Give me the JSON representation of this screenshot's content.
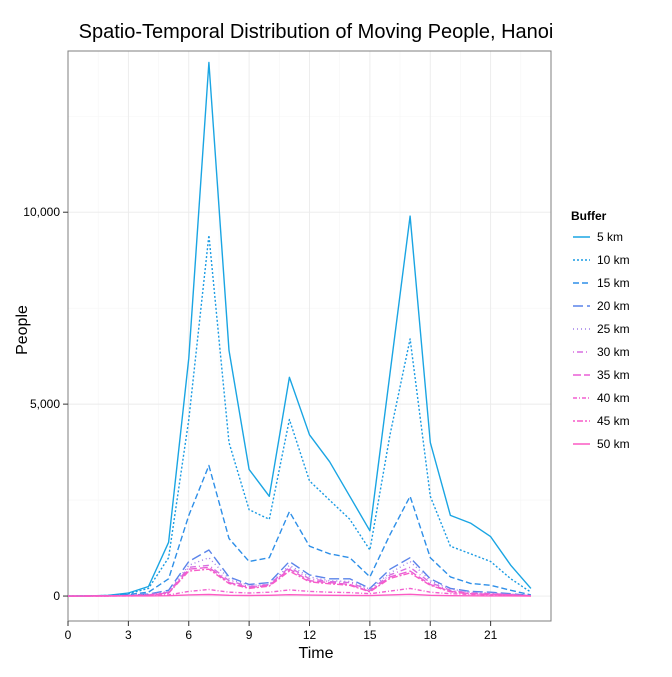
{
  "chart_data": {
    "type": "line",
    "title": "Spatio-Temporal Distribution of Moving People, Hanoi",
    "xlabel": "Time",
    "ylabel": "People",
    "xlim": [
      0,
      24
    ],
    "ylim": [
      -650,
      14200
    ],
    "x_ticks": [
      0,
      3,
      6,
      9,
      12,
      15,
      18,
      21
    ],
    "x_tick_labels": [
      "0",
      "3",
      "6",
      "9",
      "12",
      "15",
      "18",
      "21"
    ],
    "y_ticks": [
      0,
      5000,
      10000
    ],
    "y_tick_labels": [
      "0",
      "5,000",
      "10,000"
    ],
    "grid": true,
    "legend_title": "Buffer",
    "legend_position": "right",
    "x": [
      0,
      1,
      2,
      3,
      4,
      5,
      6,
      7,
      8,
      9,
      10,
      11,
      12,
      13,
      14,
      15,
      16,
      17,
      18,
      19,
      20,
      21,
      22,
      23
    ],
    "series": [
      {
        "name": "5 km",
        "color": "#1aa5e3",
        "dash": "",
        "values": [
          0,
          5,
          20,
          80,
          250,
          1400,
          6200,
          13900,
          6400,
          3300,
          2600,
          5700,
          4200,
          3500,
          2600,
          1700,
          5800,
          9900,
          4000,
          2100,
          1900,
          1550,
          800,
          200
        ]
      },
      {
        "name": "10 km",
        "color": "#1a9be3",
        "dash": "2,2",
        "values": [
          0,
          4,
          15,
          60,
          200,
          1000,
          4600,
          9400,
          4000,
          2250,
          2000,
          4600,
          3000,
          2500,
          2000,
          1200,
          4200,
          6700,
          2600,
          1300,
          1100,
          900,
          450,
          100
        ]
      },
      {
        "name": "15 km",
        "color": "#2e8fe8",
        "dash": "6,3",
        "values": [
          0,
          3,
          10,
          40,
          100,
          450,
          2100,
          3400,
          1500,
          900,
          1000,
          2200,
          1300,
          1100,
          1000,
          500,
          1600,
          2600,
          1000,
          500,
          330,
          280,
          150,
          30
        ]
      },
      {
        "name": "20 km",
        "color": "#5a84ea",
        "dash": "10,4",
        "values": [
          0,
          2,
          6,
          20,
          50,
          150,
          900,
          1200,
          500,
          300,
          350,
          900,
          550,
          450,
          450,
          200,
          700,
          1000,
          450,
          200,
          120,
          100,
          60,
          15
        ]
      },
      {
        "name": "25 km",
        "color": "#a07ee8",
        "dash": "1,3",
        "values": [
          0,
          2,
          5,
          15,
          40,
          120,
          800,
          1000,
          450,
          280,
          300,
          800,
          500,
          400,
          380,
          180,
          600,
          900,
          400,
          180,
          100,
          80,
          50,
          10
        ]
      },
      {
        "name": "30 km",
        "color": "#d76ee0",
        "dash": "1,3,6,3",
        "values": [
          0,
          1,
          4,
          12,
          30,
          100,
          750,
          800,
          400,
          250,
          300,
          750,
          450,
          380,
          350,
          150,
          550,
          750,
          350,
          150,
          80,
          60,
          40,
          8
        ]
      },
      {
        "name": "35 km",
        "color": "#ea5ed6",
        "dash": "8,3",
        "values": [
          0,
          1,
          3,
          10,
          25,
          80,
          700,
          750,
          350,
          220,
          280,
          700,
          400,
          350,
          300,
          120,
          500,
          650,
          300,
          120,
          60,
          50,
          30,
          5
        ]
      },
      {
        "name": "40 km",
        "color": "#f25fd0",
        "dash": "4,2,1,2",
        "values": [
          0,
          1,
          2,
          5,
          10,
          30,
          120,
          170,
          100,
          80,
          100,
          160,
          120,
          100,
          90,
          60,
          130,
          200,
          100,
          60,
          40,
          30,
          20,
          3
        ]
      },
      {
        "name": "45 km",
        "color": "#f75cc8",
        "dash": "2,2,6,2",
        "values": [
          0,
          1,
          3,
          10,
          25,
          75,
          650,
          700,
          330,
          200,
          260,
          650,
          370,
          320,
          280,
          110,
          460,
          600,
          280,
          110,
          55,
          45,
          25,
          4
        ]
      },
      {
        "name": "50 km",
        "color": "#fc5ac3",
        "dash": "",
        "values": [
          0,
          0,
          1,
          3,
          5,
          10,
          30,
          40,
          20,
          15,
          20,
          35,
          25,
          20,
          18,
          12,
          30,
          45,
          20,
          10,
          6,
          5,
          3,
          1
        ]
      }
    ]
  }
}
